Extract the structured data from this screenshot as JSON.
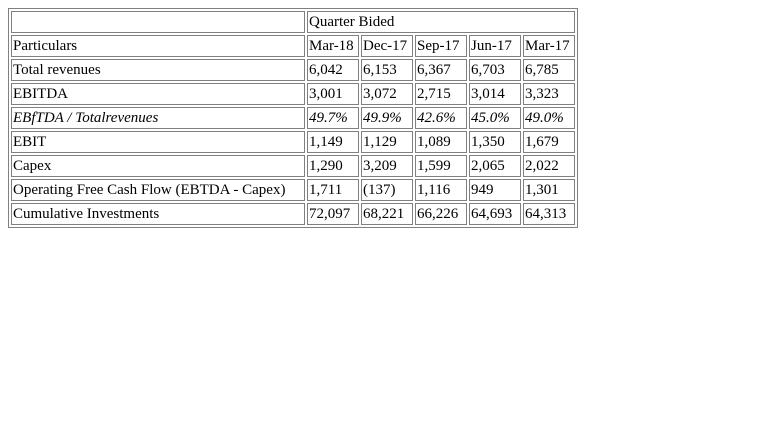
{
  "table": {
    "group_header": "Quarter Bided",
    "columns": [
      "Particulars",
      "Mar-18",
      "Dec-17",
      "Sep-17",
      "Jun-17",
      "Mar-17"
    ],
    "rows": [
      {
        "label": "Total revenues",
        "values": [
          "6,042",
          "6,153",
          "6,367",
          "6,703",
          "6,785"
        ],
        "italic": false
      },
      {
        "label": "EBITDA",
        "values": [
          "3,001",
          "3,072",
          "2,715",
          "3,014",
          "3,323"
        ],
        "italic": false
      },
      {
        "label": "EBfTDA / Totalrevenues",
        "values": [
          "49.7%",
          "49.9%",
          "42.6%",
          "45.0%",
          "49.0%"
        ],
        "italic": true
      },
      {
        "label": "EBIT",
        "values": [
          "1,149",
          "1,129",
          "1,089",
          "1,350",
          "1,679"
        ],
        "italic": false
      },
      {
        "label": "Capex",
        "values": [
          "1,290",
          "3,209",
          "1,599",
          "2,065",
          "2,022"
        ],
        "italic": false
      },
      {
        "label": "Operating Free Cash Flow (EBTDA - Capex)",
        "values": [
          "1,711",
          "(137)",
          "1,116",
          "949",
          "1,301"
        ],
        "italic": false
      },
      {
        "label": "Cumulative Investments",
        "values": [
          "72,097",
          "68,221",
          "66,226",
          "64,693",
          "64,313"
        ],
        "italic": false
      }
    ]
  }
}
